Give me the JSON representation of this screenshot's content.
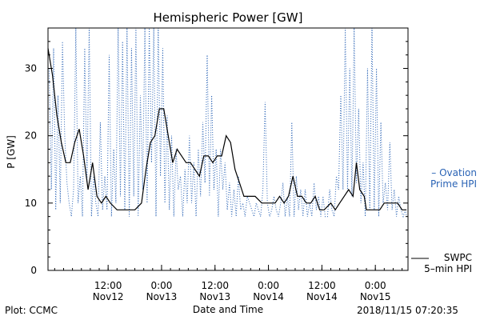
{
  "footer": {
    "plot_credit": "Plot: CCMC",
    "timestamp": "2018/11/15 07:20:35"
  },
  "colors": {
    "swpc": "#000000",
    "ovation": "#2a63b5"
  },
  "chart_data": {
    "type": "line",
    "title": "Hemispheric Power [GW]",
    "xlabel": "Date and Time",
    "ylabel": "P [GW]",
    "xlim": [
      "2018-11-11 22:30",
      "2018-11-15 07:20"
    ],
    "ylim": [
      0,
      36
    ],
    "y_ticks": [
      0,
      10,
      20,
      30
    ],
    "x_ticks": [
      {
        "t": "2018-11-12 12:00",
        "line1": "12:00",
        "line2": "Nov12"
      },
      {
        "t": "2018-11-13 00:00",
        "line1": "0:00",
        "line2": "Nov13"
      },
      {
        "t": "2018-11-13 12:00",
        "line1": "12:00",
        "line2": "Nov13"
      },
      {
        "t": "2018-11-14 00:00",
        "line1": "0:00",
        "line2": "Nov14"
      },
      {
        "t": "2018-11-14 12:00",
        "line1": "12:00",
        "line2": "Nov14"
      },
      {
        "t": "2018-11-15 00:00",
        "line1": "0:00",
        "line2": "Nov15"
      }
    ],
    "grid": false,
    "legend_placement": "right",
    "series": [
      {
        "name": "SWPC 5-min HPI",
        "legend_line1": "SWPC",
        "legend_line2": "5–min HPI",
        "color": "#000000",
        "style": "solid",
        "points": [
          [
            "2018-11-11 22:30",
            33
          ],
          [
            "2018-11-11 23:30",
            29
          ],
          [
            "2018-11-12 00:30",
            23
          ],
          [
            "2018-11-12 01:30",
            19
          ],
          [
            "2018-11-12 02:30",
            16
          ],
          [
            "2018-11-12 03:30",
            16
          ],
          [
            "2018-11-12 04:30",
            19
          ],
          [
            "2018-11-12 05:30",
            21
          ],
          [
            "2018-11-12 06:30",
            17
          ],
          [
            "2018-11-12 07:30",
            12
          ],
          [
            "2018-11-12 08:30",
            16
          ],
          [
            "2018-11-12 09:30",
            11
          ],
          [
            "2018-11-12 10:30",
            10
          ],
          [
            "2018-11-12 11:30",
            11
          ],
          [
            "2018-11-12 12:30",
            10
          ],
          [
            "2018-11-12 14:00",
            9
          ],
          [
            "2018-11-12 16:00",
            9
          ],
          [
            "2018-11-12 18:00",
            9
          ],
          [
            "2018-11-12 19:30",
            10
          ],
          [
            "2018-11-12 20:30",
            15
          ],
          [
            "2018-11-12 21:30",
            19
          ],
          [
            "2018-11-12 22:30",
            20
          ],
          [
            "2018-11-12 23:30",
            24
          ],
          [
            "2018-11-13 00:30",
            24
          ],
          [
            "2018-11-13 01:30",
            20
          ],
          [
            "2018-11-13 02:30",
            16
          ],
          [
            "2018-11-13 03:30",
            18
          ],
          [
            "2018-11-13 04:30",
            17
          ],
          [
            "2018-11-13 05:30",
            16
          ],
          [
            "2018-11-13 06:30",
            16
          ],
          [
            "2018-11-13 07:30",
            15
          ],
          [
            "2018-11-13 08:30",
            14
          ],
          [
            "2018-11-13 09:30",
            17
          ],
          [
            "2018-11-13 10:30",
            17
          ],
          [
            "2018-11-13 11:30",
            16
          ],
          [
            "2018-11-13 12:30",
            17
          ],
          [
            "2018-11-13 13:30",
            17
          ],
          [
            "2018-11-13 14:30",
            20
          ],
          [
            "2018-11-13 15:30",
            19
          ],
          [
            "2018-11-13 16:30",
            15
          ],
          [
            "2018-11-13 17:30",
            13
          ],
          [
            "2018-11-13 18:30",
            11
          ],
          [
            "2018-11-13 19:30",
            11
          ],
          [
            "2018-11-13 21:00",
            11
          ],
          [
            "2018-11-13 22:30",
            10
          ],
          [
            "2018-11-14 00:00",
            10
          ],
          [
            "2018-11-14 01:30",
            10
          ],
          [
            "2018-11-14 02:30",
            11
          ],
          [
            "2018-11-14 03:30",
            10
          ],
          [
            "2018-11-14 04:30",
            11
          ],
          [
            "2018-11-14 05:30",
            14
          ],
          [
            "2018-11-14 06:30",
            11
          ],
          [
            "2018-11-14 07:30",
            11
          ],
          [
            "2018-11-14 08:30",
            10
          ],
          [
            "2018-11-14 09:30",
            10
          ],
          [
            "2018-11-14 10:30",
            11
          ],
          [
            "2018-11-14 11:30",
            9
          ],
          [
            "2018-11-14 12:30",
            9
          ],
          [
            "2018-11-14 14:00",
            10
          ],
          [
            "2018-11-14 15:00",
            9
          ],
          [
            "2018-11-14 16:00",
            10
          ],
          [
            "2018-11-14 17:00",
            11
          ],
          [
            "2018-11-14 18:00",
            12
          ],
          [
            "2018-11-14 19:00",
            11
          ],
          [
            "2018-11-14 19:45",
            16
          ],
          [
            "2018-11-14 20:30",
            12
          ],
          [
            "2018-11-14 21:30",
            11
          ],
          [
            "2018-11-14 22:00",
            9
          ],
          [
            "2018-11-14 23:00",
            9
          ],
          [
            "2018-11-15 00:00",
            9
          ],
          [
            "2018-11-15 01:00",
            9
          ],
          [
            "2018-11-15 02:00",
            10
          ],
          [
            "2018-11-15 04:00",
            10
          ],
          [
            "2018-11-15 05:00",
            10
          ],
          [
            "2018-11-15 06:00",
            9
          ],
          [
            "2018-11-15 07:00",
            9
          ]
        ]
      },
      {
        "name": "Ovation Prime HPI",
        "legend_line1": "– Ovation",
        "legend_line2": "Prime HPI",
        "color": "#2a63b5",
        "style": "dotted",
        "points": [
          [
            "2018-11-11 22:45",
            30
          ],
          [
            "2018-11-11 23:15",
            12
          ],
          [
            "2018-11-11 23:45",
            33
          ],
          [
            "2018-11-12 00:15",
            9
          ],
          [
            "2018-11-12 00:45",
            26
          ],
          [
            "2018-11-12 01:15",
            10
          ],
          [
            "2018-11-12 01:45",
            34
          ],
          [
            "2018-11-12 02:15",
            20
          ],
          [
            "2018-11-12 02:45",
            13
          ],
          [
            "2018-11-12 03:15",
            10
          ],
          [
            "2018-11-12 03:45",
            8
          ],
          [
            "2018-11-12 04:15",
            12
          ],
          [
            "2018-11-12 04:45",
            36
          ],
          [
            "2018-11-12 05:15",
            10
          ],
          [
            "2018-11-12 05:45",
            14
          ],
          [
            "2018-11-12 06:15",
            8
          ],
          [
            "2018-11-12 06:45",
            33
          ],
          [
            "2018-11-12 07:15",
            13
          ],
          [
            "2018-11-12 07:45",
            36
          ],
          [
            "2018-11-12 08:15",
            8
          ],
          [
            "2018-11-12 08:45",
            14
          ],
          [
            "2018-11-12 09:15",
            10
          ],
          [
            "2018-11-12 09:45",
            8
          ],
          [
            "2018-11-12 10:15",
            22
          ],
          [
            "2018-11-12 10:45",
            9
          ],
          [
            "2018-11-12 11:15",
            14
          ],
          [
            "2018-11-12 11:45",
            9
          ],
          [
            "2018-11-12 12:15",
            32
          ],
          [
            "2018-11-12 12:45",
            8
          ],
          [
            "2018-11-12 13:15",
            18
          ],
          [
            "2018-11-12 13:45",
            10
          ],
          [
            "2018-11-12 14:15",
            36
          ],
          [
            "2018-11-12 14:45",
            11
          ],
          [
            "2018-11-12 15:15",
            34
          ],
          [
            "2018-11-12 15:45",
            9
          ],
          [
            "2018-11-12 16:15",
            36
          ],
          [
            "2018-11-12 16:45",
            8
          ],
          [
            "2018-11-12 17:15",
            33
          ],
          [
            "2018-11-12 17:45",
            11
          ],
          [
            "2018-11-12 18:15",
            36
          ],
          [
            "2018-11-12 18:45",
            8
          ],
          [
            "2018-11-12 19:15",
            26
          ],
          [
            "2018-11-12 19:45",
            12
          ],
          [
            "2018-11-12 20:15",
            36
          ],
          [
            "2018-11-12 20:45",
            10
          ],
          [
            "2018-11-12 21:15",
            36
          ],
          [
            "2018-11-12 21:45",
            16
          ],
          [
            "2018-11-12 22:15",
            36
          ],
          [
            "2018-11-12 22:45",
            8
          ],
          [
            "2018-11-12 23:15",
            36
          ],
          [
            "2018-11-12 23:45",
            14
          ],
          [
            "2018-11-13 00:15",
            33
          ],
          [
            "2018-11-13 00:45",
            10
          ],
          [
            "2018-11-13 01:15",
            23
          ],
          [
            "2018-11-13 01:45",
            9
          ],
          [
            "2018-11-13 02:15",
            20
          ],
          [
            "2018-11-13 02:45",
            8
          ],
          [
            "2018-11-13 03:15",
            18
          ],
          [
            "2018-11-13 03:45",
            12
          ],
          [
            "2018-11-13 04:15",
            14
          ],
          [
            "2018-11-13 04:45",
            8
          ],
          [
            "2018-11-13 05:15",
            15
          ],
          [
            "2018-11-13 05:45",
            10
          ],
          [
            "2018-11-13 06:15",
            20
          ],
          [
            "2018-11-13 06:45",
            10
          ],
          [
            "2018-11-13 07:15",
            16
          ],
          [
            "2018-11-13 07:45",
            8
          ],
          [
            "2018-11-13 08:15",
            18
          ],
          [
            "2018-11-13 08:45",
            11
          ],
          [
            "2018-11-13 09:15",
            22
          ],
          [
            "2018-11-13 09:45",
            13
          ],
          [
            "2018-11-13 10:15",
            32
          ],
          [
            "2018-11-13 10:45",
            11
          ],
          [
            "2018-11-13 11:15",
            26
          ],
          [
            "2018-11-13 11:45",
            12
          ],
          [
            "2018-11-13 12:15",
            18
          ],
          [
            "2018-11-13 12:45",
            8
          ],
          [
            "2018-11-13 13:15",
            18
          ],
          [
            "2018-11-13 13:45",
            12
          ],
          [
            "2018-11-13 14:15",
            16
          ],
          [
            "2018-11-13 14:45",
            9
          ],
          [
            "2018-11-13 15:15",
            13
          ],
          [
            "2018-11-13 15:45",
            8
          ],
          [
            "2018-11-13 16:15",
            12
          ],
          [
            "2018-11-13 16:45",
            8
          ],
          [
            "2018-11-13 17:15",
            14
          ],
          [
            "2018-11-13 17:45",
            9
          ],
          [
            "2018-11-13 18:15",
            10
          ],
          [
            "2018-11-13 18:45",
            8
          ],
          [
            "2018-11-13 19:15",
            11
          ],
          [
            "2018-11-13 19:45",
            10
          ],
          [
            "2018-11-13 20:15",
            9
          ],
          [
            "2018-11-13 20:45",
            8
          ],
          [
            "2018-11-13 21:15",
            10
          ],
          [
            "2018-11-13 21:45",
            9
          ],
          [
            "2018-11-13 22:15",
            8
          ],
          [
            "2018-11-13 22:45",
            12
          ],
          [
            "2018-11-13 23:15",
            25
          ],
          [
            "2018-11-13 23:45",
            10
          ],
          [
            "2018-11-14 00:15",
            8
          ],
          [
            "2018-11-14 00:45",
            9
          ],
          [
            "2018-11-14 01:15",
            11
          ],
          [
            "2018-11-14 01:45",
            9
          ],
          [
            "2018-11-14 02:15",
            8
          ],
          [
            "2018-11-14 02:45",
            10
          ],
          [
            "2018-11-14 03:15",
            13
          ],
          [
            "2018-11-14 03:45",
            8
          ],
          [
            "2018-11-14 04:15",
            11
          ],
          [
            "2018-11-14 04:45",
            8
          ],
          [
            "2018-11-14 05:15",
            22
          ],
          [
            "2018-11-14 05:45",
            8
          ],
          [
            "2018-11-14 06:15",
            14
          ],
          [
            "2018-11-14 06:45",
            9
          ],
          [
            "2018-11-14 07:15",
            12
          ],
          [
            "2018-11-14 07:45",
            8
          ],
          [
            "2018-11-14 08:15",
            12
          ],
          [
            "2018-11-14 08:45",
            8
          ],
          [
            "2018-11-14 09:15",
            10
          ],
          [
            "2018-11-14 09:45",
            8
          ],
          [
            "2018-11-14 10:15",
            13
          ],
          [
            "2018-11-14 10:45",
            9
          ],
          [
            "2018-11-14 11:15",
            11
          ],
          [
            "2018-11-14 11:45",
            8
          ],
          [
            "2018-11-14 12:15",
            11
          ],
          [
            "2018-11-14 12:45",
            8
          ],
          [
            "2018-11-14 13:15",
            8
          ],
          [
            "2018-11-14 13:45",
            12
          ],
          [
            "2018-11-14 14:15",
            9
          ],
          [
            "2018-11-14 14:45",
            8
          ],
          [
            "2018-11-14 15:15",
            14
          ],
          [
            "2018-11-14 15:45",
            12
          ],
          [
            "2018-11-14 16:15",
            26
          ],
          [
            "2018-11-14 16:45",
            12
          ],
          [
            "2018-11-14 17:15",
            36
          ],
          [
            "2018-11-14 17:45",
            12
          ],
          [
            "2018-11-14 18:15",
            30
          ],
          [
            "2018-11-14 18:45",
            11
          ],
          [
            "2018-11-14 19:15",
            36
          ],
          [
            "2018-11-14 19:45",
            13
          ],
          [
            "2018-11-14 20:15",
            24
          ],
          [
            "2018-11-14 20:45",
            10
          ],
          [
            "2018-11-14 21:15",
            16
          ],
          [
            "2018-11-14 21:45",
            8
          ],
          [
            "2018-11-14 22:15",
            30
          ],
          [
            "2018-11-14 22:45",
            9
          ],
          [
            "2018-11-14 23:15",
            36
          ],
          [
            "2018-11-14 23:45",
            9
          ],
          [
            "2018-11-15 00:15",
            30
          ],
          [
            "2018-11-15 00:45",
            8
          ],
          [
            "2018-11-15 01:15",
            22
          ],
          [
            "2018-11-15 01:45",
            10
          ],
          [
            "2018-11-15 02:15",
            13
          ],
          [
            "2018-11-15 02:45",
            9
          ],
          [
            "2018-11-15 03:15",
            19
          ],
          [
            "2018-11-15 03:45",
            9
          ],
          [
            "2018-11-15 04:15",
            12
          ],
          [
            "2018-11-15 04:45",
            8
          ],
          [
            "2018-11-15 05:15",
            11
          ],
          [
            "2018-11-15 05:45",
            9
          ],
          [
            "2018-11-15 06:15",
            8
          ],
          [
            "2018-11-15 06:45",
            9
          ],
          [
            "2018-11-15 07:00",
            8
          ]
        ]
      }
    ]
  }
}
